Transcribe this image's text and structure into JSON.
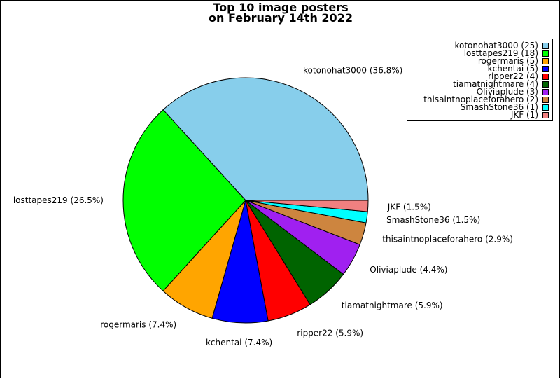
{
  "chart_data": {
    "type": "pie",
    "title_lines": [
      "Top 10 image posters",
      "on February 14th 2022"
    ],
    "slices": [
      {
        "name": "kotonohat3000",
        "value": 25,
        "pct_label": "kotonohat3000 (36.8%)",
        "legend_label": "kotonohat3000 (25)",
        "color": "#87ceeb"
      },
      {
        "name": "losttapes219",
        "value": 18,
        "pct_label": "losttapes219 (26.5%)",
        "legend_label": "losttapes219 (18)",
        "color": "#00ff00"
      },
      {
        "name": "rogermaris",
        "value": 5,
        "pct_label": "rogermaris (7.4%)",
        "legend_label": "rogermaris (5)",
        "color": "#ffa500"
      },
      {
        "name": "kchentai",
        "value": 5,
        "pct_label": "kchentai (7.4%)",
        "legend_label": "kchentai (5)",
        "color": "#0000ff"
      },
      {
        "name": "ripper22",
        "value": 4,
        "pct_label": "ripper22 (5.9%)",
        "legend_label": "ripper22 (4)",
        "color": "#ff0000"
      },
      {
        "name": "tiamatnightmare",
        "value": 4,
        "pct_label": "tiamatnightmare (5.9%)",
        "legend_label": "tiamatnightmare (4)",
        "color": "#006400"
      },
      {
        "name": "Oliviaplude",
        "value": 3,
        "pct_label": "Oliviaplude (4.4%)",
        "legend_label": "Oliviaplude (3)",
        "color": "#a020f0"
      },
      {
        "name": "thisaintnoplaceforahero",
        "value": 2,
        "pct_label": "thisaintnoplaceforahero (2.9%)",
        "legend_label": "thisaintnoplaceforahero (2)",
        "color": "#cd853f"
      },
      {
        "name": "SmashStone36",
        "value": 1,
        "pct_label": "SmashStone36 (1.5%)",
        "legend_label": "SmashStone36 (1)",
        "color": "#00ffff"
      },
      {
        "name": "JKF",
        "value": 1,
        "pct_label": "JKF (1.5%)",
        "legend_label": "JKF (1)",
        "color": "#f08080"
      }
    ],
    "legend_placement": "top-right",
    "start_angle": "3 o'clock",
    "direction": "counterclockwise"
  }
}
